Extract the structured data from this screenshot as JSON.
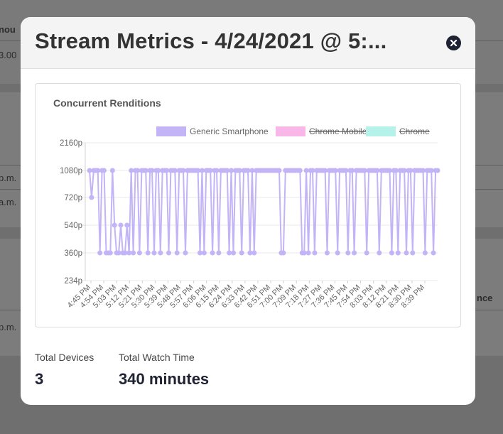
{
  "background": {
    "col_header_1": "nou",
    "value_1": "3.00",
    "value_2": "p.m.",
    "value_3": "a.m.",
    "col_header_2": "nce",
    "value_4": "p.m."
  },
  "modal": {
    "title": "Stream Metrics - 4/24/2021 @ 5:...",
    "close_label": "×"
  },
  "chart_data": {
    "type": "line",
    "title": "Concurrent Renditions",
    "y_category_labels": [
      "2160p",
      "1080p",
      "720p",
      "540p",
      "360p",
      "234p"
    ],
    "y_levels": [
      2160,
      1080,
      720,
      540,
      360,
      234
    ],
    "x_tick_labels": [
      "4:45 PM",
      "4:54 PM",
      "5:03 PM",
      "5:12 PM",
      "5:21 PM",
      "5:30 PM",
      "5:39 PM",
      "5:48 PM",
      "5:57 PM",
      "6:06 PM",
      "6:15 PM",
      "6:24 PM",
      "6:33 PM",
      "6:42 PM",
      "6:51 PM",
      "7:00 PM",
      "7:09 PM",
      "7:18 PM",
      "7:27 PM",
      "7:36 PM",
      "7:45 PM",
      "7:54 PM",
      "8:03 PM",
      "8:12 PM",
      "8:21 PM",
      "8:30 PM",
      "8:39 PM"
    ],
    "legend_position": "top",
    "series": [
      {
        "name": "Generic Smartphone",
        "color": "#c3b4f7",
        "hidden": false,
        "values": [
          1080,
          720,
          1080,
          1080,
          1080,
          360,
          1080,
          1080,
          360,
          360,
          360,
          1080,
          540,
          360,
          360,
          540,
          360,
          360,
          540,
          360,
          1080,
          360,
          1080,
          1080,
          360,
          1080,
          1080,
          1080,
          360,
          1080,
          1080,
          360,
          1080,
          1080,
          360,
          1080,
          1080,
          1080,
          360,
          1080,
          1080,
          1080,
          360,
          1080,
          1080,
          1080,
          360,
          1080,
          1080,
          1080,
          1080,
          1080,
          1080,
          360,
          1080,
          360,
          1080,
          1080,
          1080,
          360,
          1080,
          1080,
          360,
          1080,
          1080,
          1080,
          1080,
          360,
          1080,
          360,
          1080,
          1080,
          1080,
          360,
          1080,
          1080,
          1080,
          360,
          1080,
          360,
          1080,
          1080,
          1080,
          1080,
          1080,
          1080,
          1080,
          1080,
          1080,
          1080,
          1080,
          1080,
          360,
          360,
          1080,
          1080,
          1080,
          1080,
          1080,
          1080,
          1080,
          1080,
          360,
          360,
          1080,
          360,
          1080,
          1080,
          360,
          1080,
          1080,
          1080,
          1080,
          1080,
          360,
          1080,
          1080,
          1080,
          1080,
          360,
          1080,
          1080,
          1080,
          1080,
          360,
          1080,
          1080,
          360,
          1080,
          1080,
          1080,
          1080,
          1080,
          360,
          1080,
          1080,
          1080,
          1080,
          1080,
          360,
          1080,
          1080,
          1080,
          1080,
          1080,
          360,
          1080,
          1080,
          360,
          1080,
          1080,
          1080,
          360,
          1080,
          1080,
          360,
          1080,
          1080,
          1080,
          1080,
          1080,
          360,
          1080,
          1080,
          1080,
          360,
          1080,
          1080
        ]
      },
      {
        "name": "Chrome Mobile",
        "color": "#f8b7e6",
        "hidden": true,
        "values": []
      },
      {
        "name": "Chrome",
        "color": "#b5f2ea",
        "hidden": true,
        "values": []
      }
    ]
  },
  "stats": [
    {
      "label": "Total Devices",
      "value": "3"
    },
    {
      "label": "Total Watch Time",
      "value": "340 minutes"
    }
  ]
}
